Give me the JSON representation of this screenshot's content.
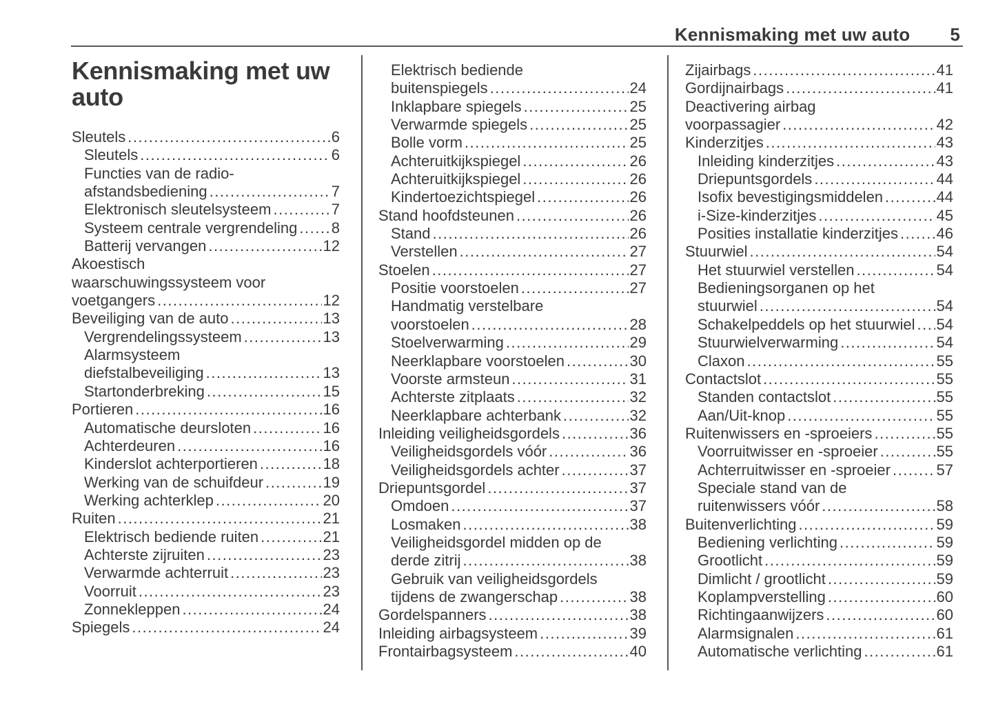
{
  "header": {
    "title": "Kennismaking met uw auto",
    "page_number": "5"
  },
  "page_title": "Kennismaking met uw auto",
  "colors": {
    "text": "#3a3a3a",
    "rule": "#57575b",
    "background": "#ffffff"
  },
  "columns": [
    {
      "lines": [
        {
          "text": "Sleutels",
          "indent": 0,
          "page": "6"
        },
        {
          "text": "Sleutels",
          "indent": 1,
          "page": "6"
        },
        {
          "text": "Functies van de radio-",
          "indent": 1
        },
        {
          "text": "afstandsbediening",
          "indent": 1,
          "page": "7"
        },
        {
          "text": "Elektronisch sleutelsysteem",
          "indent": 1,
          "page": "7"
        },
        {
          "text": "Systeem centrale vergrendeling",
          "indent": 1,
          "page": "8"
        },
        {
          "text": "Batterij vervangen",
          "indent": 1,
          "page": "12"
        },
        {
          "text": "Akoestisch",
          "indent": 0
        },
        {
          "text": "waarschuwingssysteem voor",
          "indent": 0
        },
        {
          "text": "voetgangers",
          "indent": 0,
          "page": "12"
        },
        {
          "text": "Beveiliging van de auto",
          "indent": 0,
          "page": "13"
        },
        {
          "text": "Vergrendelingssysteem",
          "indent": 1,
          "page": "13"
        },
        {
          "text": "Alarmsysteem",
          "indent": 1
        },
        {
          "text": "diefstalbeveiliging",
          "indent": 1,
          "page": "13"
        },
        {
          "text": "Startonderbreking",
          "indent": 1,
          "page": "15"
        },
        {
          "text": "Portieren",
          "indent": 0,
          "page": "16"
        },
        {
          "text": "Automatische deursloten",
          "indent": 1,
          "page": "16"
        },
        {
          "text": "Achterdeuren",
          "indent": 1,
          "page": "16"
        },
        {
          "text": "Kinderslot achterportieren",
          "indent": 1,
          "page": "18"
        },
        {
          "text": "Werking van de schuifdeur",
          "indent": 1,
          "page": "19"
        },
        {
          "text": "Werking achterklep",
          "indent": 1,
          "page": "20"
        },
        {
          "text": "Ruiten",
          "indent": 0,
          "page": "21"
        },
        {
          "text": "Elektrisch bediende ruiten",
          "indent": 1,
          "page": "21"
        },
        {
          "text": "Achterste zijruiten",
          "indent": 1,
          "page": "23"
        },
        {
          "text": "Verwarmde achterruit",
          "indent": 1,
          "page": "23"
        },
        {
          "text": "Voorruit",
          "indent": 1,
          "page": "23"
        },
        {
          "text": "Zonnekleppen",
          "indent": 1,
          "page": "24"
        },
        {
          "text": "Spiegels",
          "indent": 0,
          "page": "24"
        }
      ]
    },
    {
      "lines": [
        {
          "text": "Elektrisch bediende",
          "indent": 1
        },
        {
          "text": "buitenspiegels",
          "indent": 1,
          "page": "24"
        },
        {
          "text": "Inklapbare spiegels",
          "indent": 1,
          "page": "25"
        },
        {
          "text": "Verwarmde spiegels",
          "indent": 1,
          "page": "25"
        },
        {
          "text": "Bolle vorm",
          "indent": 1,
          "page": "25"
        },
        {
          "text": "Achteruitkijkspiegel",
          "indent": 1,
          "page": "26"
        },
        {
          "text": "Achteruitkijkspiegel",
          "indent": 1,
          "page": "26"
        },
        {
          "text": "Kindertoezichtspiegel",
          "indent": 1,
          "page": "26"
        },
        {
          "text": "Stand hoofdsteunen",
          "indent": 0,
          "page": "26"
        },
        {
          "text": "Stand",
          "indent": 1,
          "page": "26"
        },
        {
          "text": "Verstellen",
          "indent": 1,
          "page": "27"
        },
        {
          "text": "Stoelen",
          "indent": 0,
          "page": "27"
        },
        {
          "text": "Positie voorstoelen",
          "indent": 1,
          "page": "27"
        },
        {
          "text": "Handmatig verstelbare",
          "indent": 1
        },
        {
          "text": "voorstoelen",
          "indent": 1,
          "page": "28"
        },
        {
          "text": "Stoelverwarming",
          "indent": 1,
          "page": "29"
        },
        {
          "text": "Neerklapbare voorstoelen",
          "indent": 1,
          "page": "30"
        },
        {
          "text": "Voorste armsteun",
          "indent": 1,
          "page": "31"
        },
        {
          "text": "Achterste zitplaats",
          "indent": 1,
          "page": "32"
        },
        {
          "text": "Neerklapbare achterbank",
          "indent": 1,
          "page": "32"
        },
        {
          "text": "Inleiding veiligheidsgordels",
          "indent": 0,
          "page": "36"
        },
        {
          "text": "Veiligheidsgordels vóór",
          "indent": 1,
          "page": "36"
        },
        {
          "text": "Veiligheidsgordels achter",
          "indent": 1,
          "page": "37"
        },
        {
          "text": "Driepuntsgordel",
          "indent": 0,
          "page": "37"
        },
        {
          "text": "Omdoen",
          "indent": 1,
          "page": "37"
        },
        {
          "text": "Losmaken",
          "indent": 1,
          "page": "38"
        },
        {
          "text": "Veiligheidsgordel midden op de",
          "indent": 1
        },
        {
          "text": "derde zitrij",
          "indent": 1,
          "page": "38"
        },
        {
          "text": "Gebruik van veiligheidsgordels",
          "indent": 1
        },
        {
          "text": "tijdens de zwangerschap",
          "indent": 1,
          "page": "38"
        },
        {
          "text": "Gordelspanners",
          "indent": 0,
          "page": "38"
        },
        {
          "text": "Inleiding airbagsysteem",
          "indent": 0,
          "page": "39"
        },
        {
          "text": "Frontairbagsysteem",
          "indent": 0,
          "page": "40"
        }
      ]
    },
    {
      "lines": [
        {
          "text": "Zijairbags",
          "indent": 0,
          "page": "41"
        },
        {
          "text": "Gordijnairbags",
          "indent": 0,
          "page": "41"
        },
        {
          "text": "Deactivering airbag",
          "indent": 0
        },
        {
          "text": "voorpassagier",
          "indent": 0,
          "page": "42"
        },
        {
          "text": "Kinderzitjes",
          "indent": 0,
          "page": "43"
        },
        {
          "text": "Inleiding kinderzitjes",
          "indent": 1,
          "page": "43"
        },
        {
          "text": "Driepuntsgordels",
          "indent": 1,
          "page": "44"
        },
        {
          "text": "Isofix bevestigingsmiddelen",
          "indent": 1,
          "page": "44"
        },
        {
          "text": "i-Size-kinderzitjes",
          "indent": 1,
          "page": "45"
        },
        {
          "text": "Posities installatie kinderzitjes",
          "indent": 1,
          "page": "46"
        },
        {
          "text": "Stuurwiel",
          "indent": 0,
          "page": "54"
        },
        {
          "text": "Het stuurwiel verstellen",
          "indent": 1,
          "page": "54"
        },
        {
          "text": "Bedieningsorganen op het",
          "indent": 1
        },
        {
          "text": "stuurwiel",
          "indent": 1,
          "page": "54"
        },
        {
          "text": "Schakelpeddels op het stuurwiel",
          "indent": 1,
          "page": "54"
        },
        {
          "text": "Stuurwielverwarming",
          "indent": 1,
          "page": "54"
        },
        {
          "text": "Claxon",
          "indent": 1,
          "page": "55"
        },
        {
          "text": "Contactslot",
          "indent": 0,
          "page": "55"
        },
        {
          "text": "Standen contactslot",
          "indent": 1,
          "page": "55"
        },
        {
          "text": "Aan/Uit-knop",
          "indent": 1,
          "page": "55"
        },
        {
          "text": "Ruitenwissers en -sproeiers",
          "indent": 0,
          "page": "55"
        },
        {
          "text": "Voorruitwisser en -sproeier",
          "indent": 1,
          "page": "55"
        },
        {
          "text": "Achterruitwisser en -sproeier",
          "indent": 1,
          "page": "57"
        },
        {
          "text": "Speciale stand van de",
          "indent": 1
        },
        {
          "text": "ruitenwissers vóór",
          "indent": 1,
          "page": "58"
        },
        {
          "text": "Buitenverlichting",
          "indent": 0,
          "page": "59"
        },
        {
          "text": "Bediening verlichting",
          "indent": 1,
          "page": "59"
        },
        {
          "text": "Grootlicht",
          "indent": 1,
          "page": "59"
        },
        {
          "text": "Dimlicht / grootlicht",
          "indent": 1,
          "page": "59"
        },
        {
          "text": "Koplampverstelling",
          "indent": 1,
          "page": "60"
        },
        {
          "text": "Richtingaanwijzers",
          "indent": 1,
          "page": "60"
        },
        {
          "text": "Alarmsignalen",
          "indent": 1,
          "page": "61"
        },
        {
          "text": "Automatische verlichting",
          "indent": 1,
          "page": "61"
        }
      ]
    }
  ]
}
